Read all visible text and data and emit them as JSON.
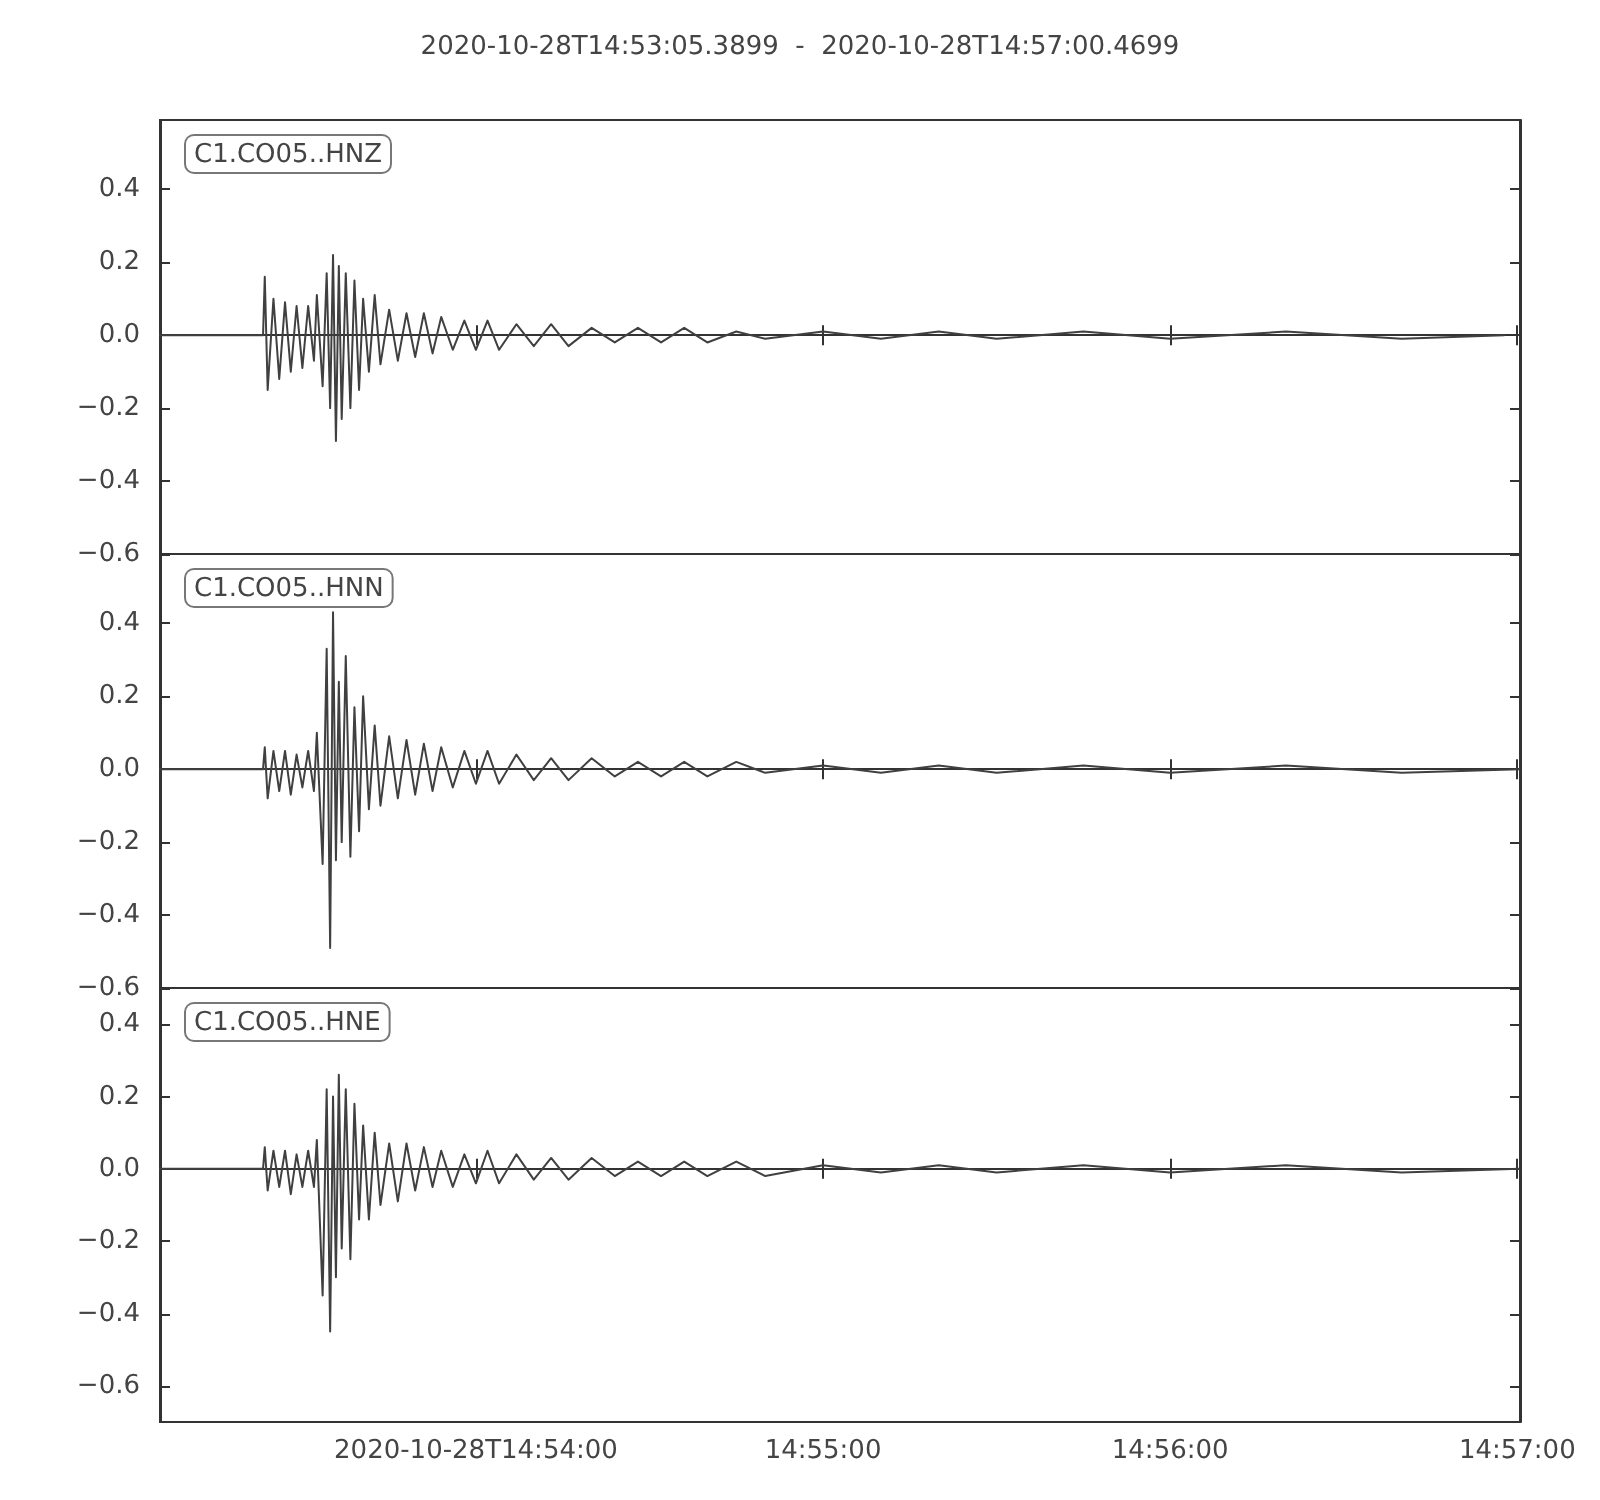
{
  "chart_data": [
    {
      "type": "line",
      "title": "2020-10-28T14:53:05.3899  -  2020-10-28T14:57:00.4699",
      "annotations": [
        "C1.CO05..HNZ"
      ],
      "tick_labels": "y",
      "xlim": [
        "2020-10-28T14:53:05.390",
        "2020-10-28T14:57:00.470"
      ],
      "xticks": [
        {
          "value": "2020-10-28T14:54:00",
          "label": null
        },
        {
          "value": "2020-10-28T14:55:00",
          "label": null
        },
        {
          "value": "2020-10-28T14:56:00",
          "label": null
        },
        {
          "value": "2020-10-28T14:57:00",
          "label": null
        }
      ],
      "ylim": [
        -0.6,
        0.59
      ],
      "yticks": [
        {
          "value": -0.6,
          "label": "−0.6"
        },
        {
          "value": -0.4,
          "label": "−0.4"
        },
        {
          "value": -0.2,
          "label": "−0.2"
        },
        {
          "value": 0,
          "label": "0.0"
        },
        {
          "value": 0.2,
          "label": "0.2"
        },
        {
          "value": 0.4,
          "label": "0.4"
        }
      ],
      "x": [
        "2020-10-28T14:53:05.390",
        "2020-10-28T14:53:23.200",
        "2020-10-28T14:53:23.500",
        "2020-10-28T14:53:24",
        "2020-10-28T14:53:25",
        "2020-10-28T14:53:26",
        "2020-10-28T14:53:27",
        "2020-10-28T14:53:28",
        "2020-10-28T14:53:29",
        "2020-10-28T14:53:30",
        "2020-10-28T14:53:31",
        "2020-10-28T14:53:32",
        "2020-10-28T14:53:32.500",
        "2020-10-28T14:53:33.500",
        "2020-10-28T14:53:34.200",
        "2020-10-28T14:53:34.800",
        "2020-10-28T14:53:35.300",
        "2020-10-28T14:53:35.800",
        "2020-10-28T14:53:36.300",
        "2020-10-28T14:53:36.800",
        "2020-10-28T14:53:37.500",
        "2020-10-28T14:53:38.300",
        "2020-10-28T14:53:39",
        "2020-10-28T14:53:39.800",
        "2020-10-28T14:53:40.500",
        "2020-10-28T14:53:41.500",
        "2020-10-28T14:53:42.500",
        "2020-10-28T14:53:43.500",
        "2020-10-28T14:53:45",
        "2020-10-28T14:53:46.500",
        "2020-10-28T14:53:48",
        "2020-10-28T14:53:49.500",
        "2020-10-28T14:53:51",
        "2020-10-28T14:53:52.500",
        "2020-10-28T14:53:54",
        "2020-10-28T14:53:56",
        "2020-10-28T14:53:58",
        "2020-10-28T14:54:00",
        "2020-10-28T14:54:02",
        "2020-10-28T14:54:04",
        "2020-10-28T14:54:07",
        "2020-10-28T14:54:10",
        "2020-10-28T14:54:13",
        "2020-10-28T14:54:16",
        "2020-10-28T14:54:20",
        "2020-10-28T14:54:24",
        "2020-10-28T14:54:28",
        "2020-10-28T14:54:32",
        "2020-10-28T14:54:36",
        "2020-10-28T14:54:40",
        "2020-10-28T14:54:45",
        "2020-10-28T14:54:50",
        "2020-10-28T14:55:00",
        "2020-10-28T14:55:10",
        "2020-10-28T14:55:20",
        "2020-10-28T14:55:30",
        "2020-10-28T14:55:45",
        "2020-10-28T14:56:00",
        "2020-10-28T14:56:20",
        "2020-10-28T14:56:40",
        "2020-10-28T14:56:57.700"
      ],
      "series": [
        {
          "color": "#404040",
          "values": [
            0,
            0,
            0.16,
            -0.15,
            0.1,
            -0.12,
            0.09,
            -0.1,
            0.08,
            -0.09,
            0.08,
            -0.07,
            0.11,
            -0.14,
            0.17,
            -0.2,
            0.22,
            -0.29,
            0.19,
            -0.23,
            0.17,
            -0.2,
            0.15,
            -0.15,
            0.1,
            -0.1,
            0.11,
            -0.08,
            0.07,
            -0.07,
            0.06,
            -0.06,
            0.06,
            -0.05,
            0.05,
            -0.04,
            0.04,
            -0.04,
            0.04,
            -0.04,
            0.03,
            -0.03,
            0.03,
            -0.03,
            0.02,
            -0.02,
            0.02,
            -0.02,
            0.02,
            -0.02,
            0.01,
            -0.01,
            0.01,
            -0.01,
            0.01,
            -0.01,
            0.01,
            -0.01,
            0.01,
            -0.01,
            0
          ]
        }
      ]
    },
    {
      "type": "line",
      "annotations": [
        "C1.CO05..HNN"
      ],
      "tick_labels": "y",
      "xlim": [
        "2020-10-28T14:53:05.390",
        "2020-10-28T14:57:00.470"
      ],
      "xticks": [
        {
          "value": "2020-10-28T14:54:00",
          "label": null
        },
        {
          "value": "2020-10-28T14:55:00",
          "label": null
        },
        {
          "value": "2020-10-28T14:56:00",
          "label": null
        },
        {
          "value": "2020-10-28T14:57:00",
          "label": null
        }
      ],
      "ylim": [
        -0.6,
        0.59
      ],
      "yticks": [
        {
          "value": -0.6,
          "label": "−0.6"
        },
        {
          "value": -0.4,
          "label": "−0.4"
        },
        {
          "value": -0.2,
          "label": "−0.2"
        },
        {
          "value": 0,
          "label": "0.0"
        },
        {
          "value": 0.2,
          "label": "0.2"
        },
        {
          "value": 0.4,
          "label": "0.4"
        }
      ],
      "x": [
        "2020-10-28T14:53:05.390",
        "2020-10-28T14:53:23.200",
        "2020-10-28T14:53:23.500",
        "2020-10-28T14:53:24",
        "2020-10-28T14:53:25",
        "2020-10-28T14:53:26",
        "2020-10-28T14:53:27",
        "2020-10-28T14:53:28",
        "2020-10-28T14:53:29",
        "2020-10-28T14:53:30",
        "2020-10-28T14:53:31",
        "2020-10-28T14:53:32",
        "2020-10-28T14:53:32.500",
        "2020-10-28T14:53:33.500",
        "2020-10-28T14:53:34.200",
        "2020-10-28T14:53:34.800",
        "2020-10-28T14:53:35.300",
        "2020-10-28T14:53:35.800",
        "2020-10-28T14:53:36.300",
        "2020-10-28T14:53:36.800",
        "2020-10-28T14:53:37.500",
        "2020-10-28T14:53:38.300",
        "2020-10-28T14:53:39",
        "2020-10-28T14:53:39.800",
        "2020-10-28T14:53:40.500",
        "2020-10-28T14:53:41.500",
        "2020-10-28T14:53:42.500",
        "2020-10-28T14:53:43.500",
        "2020-10-28T14:53:45",
        "2020-10-28T14:53:46.500",
        "2020-10-28T14:53:48",
        "2020-10-28T14:53:49.500",
        "2020-10-28T14:53:51",
        "2020-10-28T14:53:52.500",
        "2020-10-28T14:53:54",
        "2020-10-28T14:53:56",
        "2020-10-28T14:53:58",
        "2020-10-28T14:54:00",
        "2020-10-28T14:54:02",
        "2020-10-28T14:54:04",
        "2020-10-28T14:54:07",
        "2020-10-28T14:54:10",
        "2020-10-28T14:54:13",
        "2020-10-28T14:54:16",
        "2020-10-28T14:54:20",
        "2020-10-28T14:54:24",
        "2020-10-28T14:54:28",
        "2020-10-28T14:54:32",
        "2020-10-28T14:54:36",
        "2020-10-28T14:54:40",
        "2020-10-28T14:54:45",
        "2020-10-28T14:54:50",
        "2020-10-28T14:55:00",
        "2020-10-28T14:55:10",
        "2020-10-28T14:55:20",
        "2020-10-28T14:55:30",
        "2020-10-28T14:55:45",
        "2020-10-28T14:56:00",
        "2020-10-28T14:56:20",
        "2020-10-28T14:56:40",
        "2020-10-28T14:57:00.400"
      ],
      "series": [
        {
          "color": "#404040",
          "values": [
            0,
            0,
            0.06,
            -0.08,
            0.05,
            -0.06,
            0.05,
            -0.07,
            0.04,
            -0.05,
            0.05,
            -0.06,
            0.1,
            -0.26,
            0.33,
            -0.49,
            0.43,
            -0.25,
            0.24,
            -0.2,
            0.31,
            -0.24,
            0.17,
            -0.17,
            0.2,
            -0.11,
            0.12,
            -0.1,
            0.09,
            -0.08,
            0.08,
            -0.07,
            0.07,
            -0.06,
            0.06,
            -0.05,
            0.05,
            -0.04,
            0.05,
            -0.04,
            0.04,
            -0.03,
            0.03,
            -0.03,
            0.03,
            -0.02,
            0.02,
            -0.02,
            0.02,
            -0.02,
            0.02,
            -0.01,
            0.01,
            -0.01,
            0.01,
            -0.01,
            0.01,
            -0.01,
            0.01,
            -0.01,
            0
          ]
        }
      ]
    },
    {
      "type": "line",
      "annotations": [
        "C1.CO05..HNE"
      ],
      "xlim": [
        "2020-10-28T14:53:05.390",
        "2020-10-28T14:57:00.470"
      ],
      "xticks": [
        {
          "value": "2020-10-28T14:54:00",
          "label": "2020-10-28T14:54:00"
        },
        {
          "value": "2020-10-28T14:55:00",
          "label": "14:55:00"
        },
        {
          "value": "2020-10-28T14:56:00",
          "label": "14:56:00"
        },
        {
          "value": "2020-10-28T14:57:00",
          "label": "14:57:00"
        }
      ],
      "ylim": [
        -0.7,
        0.5
      ],
      "yticks": [
        {
          "value": -0.6,
          "label": "−0.6"
        },
        {
          "value": -0.4,
          "label": "−0.4"
        },
        {
          "value": -0.2,
          "label": "−0.2"
        },
        {
          "value": 0,
          "label": "0.0"
        },
        {
          "value": 0.2,
          "label": "0.2"
        },
        {
          "value": 0.4,
          "label": "0.4"
        }
      ],
      "x": [
        "2020-10-28T14:53:05.390",
        "2020-10-28T14:53:23.200",
        "2020-10-28T14:53:23.500",
        "2020-10-28T14:53:24",
        "2020-10-28T14:53:25",
        "2020-10-28T14:53:26",
        "2020-10-28T14:53:27",
        "2020-10-28T14:53:28",
        "2020-10-28T14:53:29",
        "2020-10-28T14:53:30",
        "2020-10-28T14:53:31",
        "2020-10-28T14:53:32",
        "2020-10-28T14:53:32.500",
        "2020-10-28T14:53:33.500",
        "2020-10-28T14:53:34.200",
        "2020-10-28T14:53:34.800",
        "2020-10-28T14:53:35.300",
        "2020-10-28T14:53:35.800",
        "2020-10-28T14:53:36.300",
        "2020-10-28T14:53:36.800",
        "2020-10-28T14:53:37.500",
        "2020-10-28T14:53:38.300",
        "2020-10-28T14:53:39",
        "2020-10-28T14:53:39.800",
        "2020-10-28T14:53:40.500",
        "2020-10-28T14:53:41.500",
        "2020-10-28T14:53:42.500",
        "2020-10-28T14:53:43.500",
        "2020-10-28T14:53:45",
        "2020-10-28T14:53:46.500",
        "2020-10-28T14:53:48",
        "2020-10-28T14:53:49.500",
        "2020-10-28T14:53:51",
        "2020-10-28T14:53:52.500",
        "2020-10-28T14:53:54",
        "2020-10-28T14:53:56",
        "2020-10-28T14:53:58",
        "2020-10-28T14:54:00",
        "2020-10-28T14:54:02",
        "2020-10-28T14:54:04",
        "2020-10-28T14:54:07",
        "2020-10-28T14:54:10",
        "2020-10-28T14:54:13",
        "2020-10-28T14:54:16",
        "2020-10-28T14:54:20",
        "2020-10-28T14:54:24",
        "2020-10-28T14:54:28",
        "2020-10-28T14:54:32",
        "2020-10-28T14:54:36",
        "2020-10-28T14:54:40",
        "2020-10-28T14:54:45",
        "2020-10-28T14:54:50",
        "2020-10-28T14:55:00",
        "2020-10-28T14:55:10",
        "2020-10-28T14:55:20",
        "2020-10-28T14:55:30",
        "2020-10-28T14:55:45",
        "2020-10-28T14:56:00",
        "2020-10-28T14:56:20",
        "2020-10-28T14:56:40",
        "2020-10-28T14:57:00.400"
      ],
      "series": [
        {
          "color": "#404040",
          "values": [
            0,
            0,
            0.06,
            -0.06,
            0.05,
            -0.05,
            0.05,
            -0.07,
            0.04,
            -0.05,
            0.05,
            -0.05,
            0.08,
            -0.35,
            0.22,
            -0.45,
            0.2,
            -0.3,
            0.26,
            -0.22,
            0.22,
            -0.25,
            0.18,
            -0.14,
            0.12,
            -0.14,
            0.1,
            -0.1,
            0.07,
            -0.09,
            0.07,
            -0.06,
            0.06,
            -0.05,
            0.05,
            -0.05,
            0.04,
            -0.04,
            0.05,
            -0.04,
            0.04,
            -0.03,
            0.03,
            -0.03,
            0.03,
            -0.02,
            0.02,
            -0.02,
            0.02,
            -0.02,
            0.02,
            -0.02,
            0.01,
            -0.01,
            0.01,
            -0.01,
            0.01,
            -0.01,
            0.01,
            -0.01,
            0
          ]
        }
      ]
    }
  ]
}
